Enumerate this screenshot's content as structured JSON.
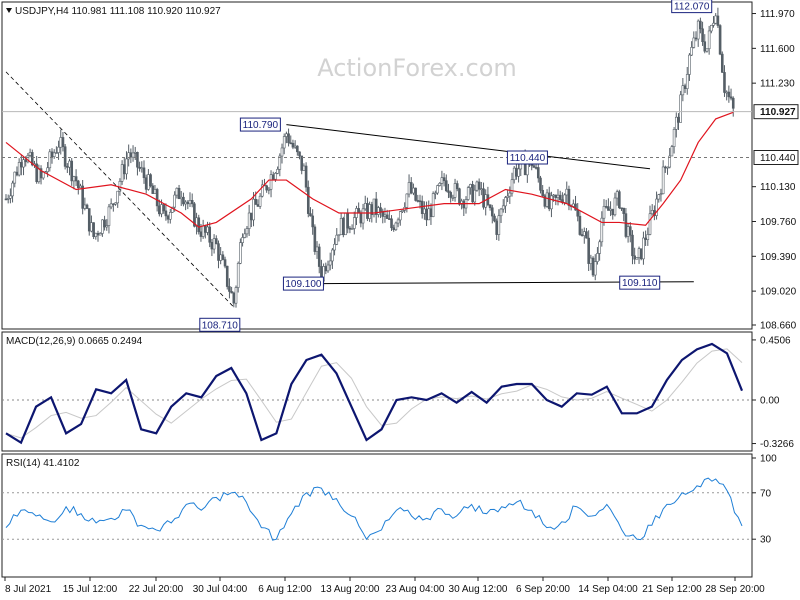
{
  "watermark": "ActionForex.com",
  "colors": {
    "candle": "#555e66",
    "ma": "#e0141e",
    "macd": "#0d1670",
    "macd_signal": "#c8c8c8",
    "rsi": "#1f7fd6",
    "trend": "#000000",
    "dash": "#777777",
    "annotation": "#1a237e"
  },
  "chart_data": [
    {
      "type": "candlestick",
      "title": "USDJPY,H4  110.981 111.108 110.920 110.927",
      "ylim": [
        108.66,
        112.05
      ],
      "y_ticks": [
        "111.970",
        "111.600",
        "111.230",
        "110.130",
        "109.760",
        "109.390",
        "109.020",
        "108.660"
      ],
      "y_tick_values": [
        111.97,
        111.6,
        111.23,
        110.13,
        109.76,
        109.39,
        109.02,
        108.66
      ],
      "current_price": "110.927",
      "hline_label": "110.440",
      "hline_value": 110.44,
      "x_labels": [
        "8 Jul 2021",
        "15 Jul 12:00",
        "22 Jul 20:00",
        "30 Jul 04:00",
        "6 Aug 12:00",
        "13 Aug 20:00",
        "23 Aug 04:00",
        "30 Aug 12:00",
        "6 Sep 20:00",
        "14 Sep 04:00",
        "21 Sep 12:00",
        "28 Sep 20:00"
      ],
      "x_range": [
        0,
        168
      ],
      "close_path": [
        [
          0,
          110.0
        ],
        [
          4,
          110.5
        ],
        [
          8,
          110.2
        ],
        [
          12,
          110.6
        ],
        [
          16,
          110.2
        ],
        [
          20,
          109.6
        ],
        [
          24,
          109.9
        ],
        [
          28,
          110.5
        ],
        [
          32,
          110.2
        ],
        [
          36,
          109.8
        ],
        [
          40,
          110.1
        ],
        [
          44,
          109.7
        ],
        [
          48,
          109.5
        ],
        [
          52,
          108.9
        ],
        [
          54,
          109.7
        ],
        [
          58,
          110.0
        ],
        [
          62,
          110.4
        ],
        [
          64,
          110.7
        ],
        [
          68,
          110.3
        ],
        [
          70,
          109.6
        ],
        [
          72,
          109.2
        ],
        [
          76,
          109.7
        ],
        [
          80,
          109.8
        ],
        [
          84,
          109.9
        ],
        [
          88,
          109.7
        ],
        [
          92,
          110.1
        ],
        [
          96,
          109.8
        ],
        [
          100,
          110.2
        ],
        [
          104,
          110.0
        ],
        [
          108,
          110.1
        ],
        [
          112,
          109.7
        ],
        [
          116,
          110.3
        ],
        [
          120,
          110.4
        ],
        [
          124,
          109.9
        ],
        [
          128,
          110.1
        ],
        [
          132,
          109.6
        ],
        [
          134,
          109.2
        ],
        [
          136,
          109.8
        ],
        [
          140,
          110.0
        ],
        [
          142,
          109.6
        ],
        [
          144,
          109.3
        ],
        [
          148,
          109.9
        ],
        [
          152,
          110.6
        ],
        [
          154,
          111.0
        ],
        [
          156,
          111.5
        ],
        [
          158,
          111.8
        ],
        [
          160,
          111.6
        ],
        [
          162,
          112.05
        ],
        [
          164,
          111.2
        ],
        [
          166,
          110.93
        ]
      ],
      "ma_path": [
        [
          0,
          110.6
        ],
        [
          8,
          110.3
        ],
        [
          16,
          110.1
        ],
        [
          24,
          110.15
        ],
        [
          32,
          110.05
        ],
        [
          40,
          109.85
        ],
        [
          44,
          109.7
        ],
        [
          48,
          109.75
        ],
        [
          56,
          110.0
        ],
        [
          60,
          110.2
        ],
        [
          64,
          110.2
        ],
        [
          70,
          110.0
        ],
        [
          76,
          109.85
        ],
        [
          84,
          109.85
        ],
        [
          92,
          109.9
        ],
        [
          100,
          109.95
        ],
        [
          108,
          109.95
        ],
        [
          114,
          110.1
        ],
        [
          120,
          110.05
        ],
        [
          128,
          109.95
        ],
        [
          136,
          109.75
        ],
        [
          140,
          109.75
        ],
        [
          146,
          109.72
        ],
        [
          150,
          109.95
        ],
        [
          154,
          110.2
        ],
        [
          158,
          110.6
        ],
        [
          162,
          110.85
        ],
        [
          166,
          110.92
        ]
      ],
      "annotations": [
        {
          "text": "110.790",
          "x": 64,
          "y": 110.79
        },
        {
          "text": "110.440",
          "x": 114,
          "y": 110.44
        },
        {
          "text": "109.100",
          "x": 72,
          "y": 109.1
        },
        {
          "text": "109.110",
          "x": 141,
          "y": 109.11
        },
        {
          "text": "108.710",
          "x": 52,
          "y": 108.71
        },
        {
          "text": "112.070",
          "x": 162,
          "y": 112.07
        }
      ],
      "trendlines": [
        {
          "from": [
            64,
            110.79
          ],
          "to": [
            147,
            110.32
          ]
        },
        {
          "from": [
            72,
            109.1
          ],
          "to": [
            157,
            109.12
          ]
        }
      ],
      "dashed_trendline": {
        "from": [
          0,
          111.35
        ],
        "to": [
          52,
          108.85
        ]
      }
    },
    {
      "type": "line",
      "title": "MACD(12,26,9) 0.0665 0.2494",
      "ylim": [
        -0.36,
        0.48
      ],
      "y_ticks": [
        "0.4506",
        "0.00",
        "-0.3266"
      ],
      "y_tick_values": [
        0.4506,
        0.0,
        -0.3266
      ],
      "series": [
        {
          "values": [
            -0.25,
            -0.32,
            -0.05,
            0.02,
            -0.25,
            -0.18,
            0.08,
            0.05,
            0.15,
            -0.22,
            -0.25,
            -0.05,
            0.05,
            0.02,
            0.18,
            0.24,
            0.05,
            -0.3,
            -0.25,
            0.12,
            0.3,
            0.34,
            0.2,
            -0.05,
            -0.3,
            -0.22,
            0.0,
            0.02,
            0.0,
            0.05,
            -0.02,
            0.06,
            -0.02,
            0.1,
            0.12,
            0.12,
            0.0,
            -0.05,
            0.05,
            0.04,
            0.1,
            -0.1,
            -0.1,
            -0.05,
            0.15,
            0.3,
            0.38,
            0.42,
            0.35,
            0.07
          ]
        }
      ]
    },
    {
      "type": "line",
      "title": "RSI(14) 41.4102",
      "ylim": [
        0,
        100
      ],
      "y_ticks": [
        "100",
        "70",
        "30"
      ],
      "y_tick_values": [
        100,
        70,
        30
      ],
      "series": [
        {
          "values": [
            40,
            55,
            50,
            45,
            58,
            52,
            44,
            48,
            55,
            42,
            38,
            44,
            60,
            55,
            66,
            70,
            62,
            40,
            30,
            52,
            70,
            74,
            65,
            50,
            30,
            38,
            55,
            50,
            48,
            56,
            50,
            60,
            52,
            58,
            62,
            55,
            40,
            45,
            58,
            50,
            60,
            38,
            30,
            42,
            60,
            70,
            76,
            80,
            72,
            41.4
          ]
        }
      ]
    }
  ]
}
